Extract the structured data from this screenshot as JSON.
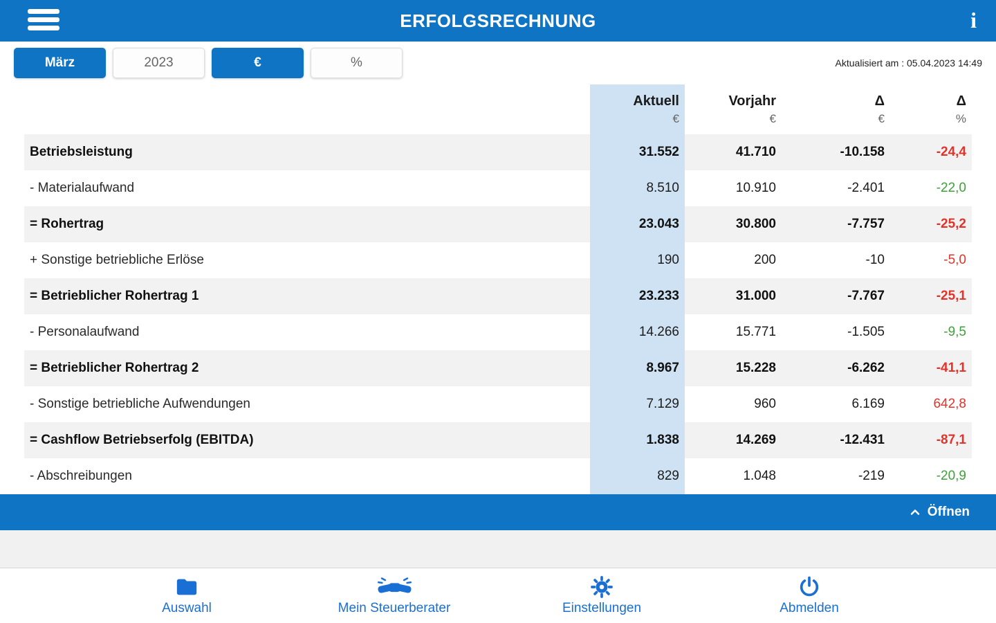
{
  "header": {
    "title": "ERFOLGSRECHNUNG"
  },
  "toolbar": {
    "buttons": [
      {
        "id": "maerz",
        "label": "März",
        "active": true
      },
      {
        "id": "year",
        "label": "2023",
        "active": false
      },
      {
        "id": "euro",
        "label": "€",
        "active": true
      },
      {
        "id": "percent",
        "label": "%",
        "active": false
      }
    ],
    "updated": "Aktualisiert am : 05.04.2023 14:49"
  },
  "table": {
    "columns": [
      {
        "label": "Aktuell",
        "unit": "€"
      },
      {
        "label": "Vorjahr",
        "unit": "€"
      },
      {
        "label": "Δ",
        "unit": "€"
      },
      {
        "label": "Δ",
        "unit": "%"
      }
    ],
    "rows": [
      {
        "label": "Betriebsleistung",
        "bold": true,
        "aktuell": "31.552",
        "vorjahr": "41.710",
        "delta": "-10.158",
        "delta_pct": "-24,4",
        "trend": "red"
      },
      {
        "label": "- Materialaufwand",
        "bold": false,
        "aktuell": "8.510",
        "vorjahr": "10.910",
        "delta": "-2.401",
        "delta_pct": "-22,0",
        "trend": "green"
      },
      {
        "label": "= Rohertrag",
        "bold": true,
        "aktuell": "23.043",
        "vorjahr": "30.800",
        "delta": "-7.757",
        "delta_pct": "-25,2",
        "trend": "red"
      },
      {
        "label": "+ Sonstige betriebliche Erlöse",
        "bold": false,
        "aktuell": "190",
        "vorjahr": "200",
        "delta": "-10",
        "delta_pct": "-5,0",
        "trend": "red"
      },
      {
        "label": "= Betrieblicher Rohertrag 1",
        "bold": true,
        "aktuell": "23.233",
        "vorjahr": "31.000",
        "delta": "-7.767",
        "delta_pct": "-25,1",
        "trend": "red"
      },
      {
        "label": "- Personalaufwand",
        "bold": false,
        "aktuell": "14.266",
        "vorjahr": "15.771",
        "delta": "-1.505",
        "delta_pct": "-9,5",
        "trend": "green"
      },
      {
        "label": "= Betrieblicher Rohertrag 2",
        "bold": true,
        "aktuell": "8.967",
        "vorjahr": "15.228",
        "delta": "-6.262",
        "delta_pct": "-41,1",
        "trend": "red"
      },
      {
        "label": "- Sonstige betriebliche Aufwendungen",
        "bold": false,
        "aktuell": "7.129",
        "vorjahr": "960",
        "delta": "6.169",
        "delta_pct": "642,8",
        "trend": "red"
      },
      {
        "label": "= Cashflow Betriebserfolg (EBITDA)",
        "bold": true,
        "aktuell": "1.838",
        "vorjahr": "14.269",
        "delta": "-12.431",
        "delta_pct": "-87,1",
        "trend": "red"
      },
      {
        "label": "- Abschreibungen",
        "bold": false,
        "aktuell": "829",
        "vorjahr": "1.048",
        "delta": "-219",
        "delta_pct": "-20,9",
        "trend": "green"
      }
    ]
  },
  "expander": {
    "label": "Öffnen"
  },
  "bottom_nav": {
    "items": [
      {
        "id": "auswahl",
        "label": "Auswahl",
        "icon": "folder-icon"
      },
      {
        "id": "steuerberater",
        "label": "Mein Steuerberater",
        "icon": "handshake-icon"
      },
      {
        "id": "einstellungen",
        "label": "Einstellungen",
        "icon": "gear-icon"
      },
      {
        "id": "abmelden",
        "label": "Abmelden",
        "icon": "power-icon"
      }
    ]
  },
  "colors": {
    "accent_blue": "#0f74c4",
    "nav_blue": "#1a6fd4",
    "highlight_column_blue": "#cfe2f3",
    "negative_red": "#e0332a",
    "positive_green": "#3f9f3a"
  }
}
